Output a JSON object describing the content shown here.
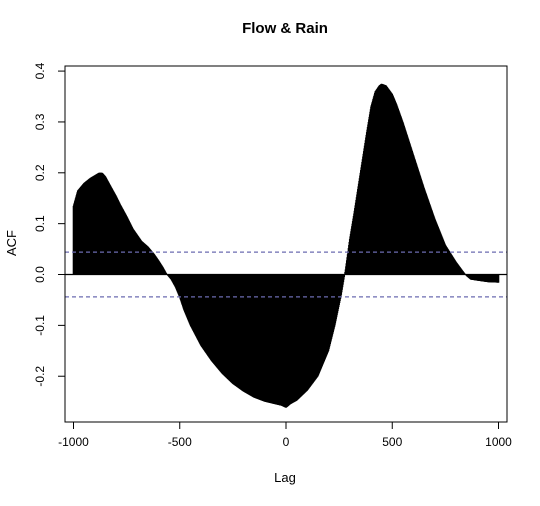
{
  "chart_data": {
    "type": "area",
    "title": "Flow & Rain",
    "xlabel": "Lag",
    "ylabel": "ACF",
    "xlim": [
      -1040,
      1040
    ],
    "ylim": [
      -0.29,
      0.41
    ],
    "x_ticks": [
      -1000,
      -500,
      0,
      500,
      1000
    ],
    "x_tick_labels": [
      "-1000",
      "-500",
      "0",
      "500",
      "1000"
    ],
    "y_ticks": [
      -0.2,
      -0.1,
      0.0,
      0.1,
      0.2,
      0.3,
      0.4
    ],
    "y_tick_labels": [
      "-0.2",
      "-0.1",
      "0.0",
      "0.1",
      "0.2",
      "0.3",
      "0.4"
    ],
    "zero_line": 0,
    "confidence_bounds": [
      0.044,
      -0.044
    ],
    "grid": false,
    "colors": {
      "bars": "#000000",
      "confidence_lines": "#6b6bb0",
      "axes": "#000000"
    },
    "series": [
      {
        "x": [
          -1000,
          -980,
          -950,
          -920,
          -900,
          -880,
          -865,
          -850,
          -820,
          -800,
          -780,
          -750,
          -720,
          -700,
          -680,
          -650,
          -620,
          -600,
          -580,
          -560,
          -540,
          -520,
          -500,
          -480,
          -450,
          -400,
          -350,
          -300,
          -250,
          -200,
          -150,
          -100,
          -50,
          -20,
          0,
          20,
          50,
          100,
          150,
          200,
          230,
          260,
          280,
          300,
          320,
          350,
          380,
          400,
          420,
          440,
          450,
          470,
          500,
          520,
          550,
          600,
          650,
          700,
          750,
          800,
          830,
          850,
          870,
          900,
          950,
          1000
        ],
        "y": [
          0.135,
          0.165,
          0.18,
          0.19,
          0.195,
          0.2,
          0.2,
          0.193,
          0.17,
          0.155,
          0.138,
          0.115,
          0.09,
          0.078,
          0.066,
          0.055,
          0.04,
          0.028,
          0.015,
          0.0,
          -0.01,
          -0.025,
          -0.045,
          -0.07,
          -0.1,
          -0.14,
          -0.17,
          -0.195,
          -0.215,
          -0.23,
          -0.242,
          -0.25,
          -0.255,
          -0.258,
          -0.262,
          -0.255,
          -0.248,
          -0.228,
          -0.2,
          -0.15,
          -0.1,
          -0.04,
          0.01,
          0.07,
          0.12,
          0.2,
          0.28,
          0.33,
          0.36,
          0.372,
          0.375,
          0.372,
          0.355,
          0.335,
          0.3,
          0.235,
          0.17,
          0.11,
          0.058,
          0.025,
          0.008,
          -0.003,
          -0.01,
          -0.012,
          -0.015,
          -0.016
        ]
      }
    ]
  }
}
